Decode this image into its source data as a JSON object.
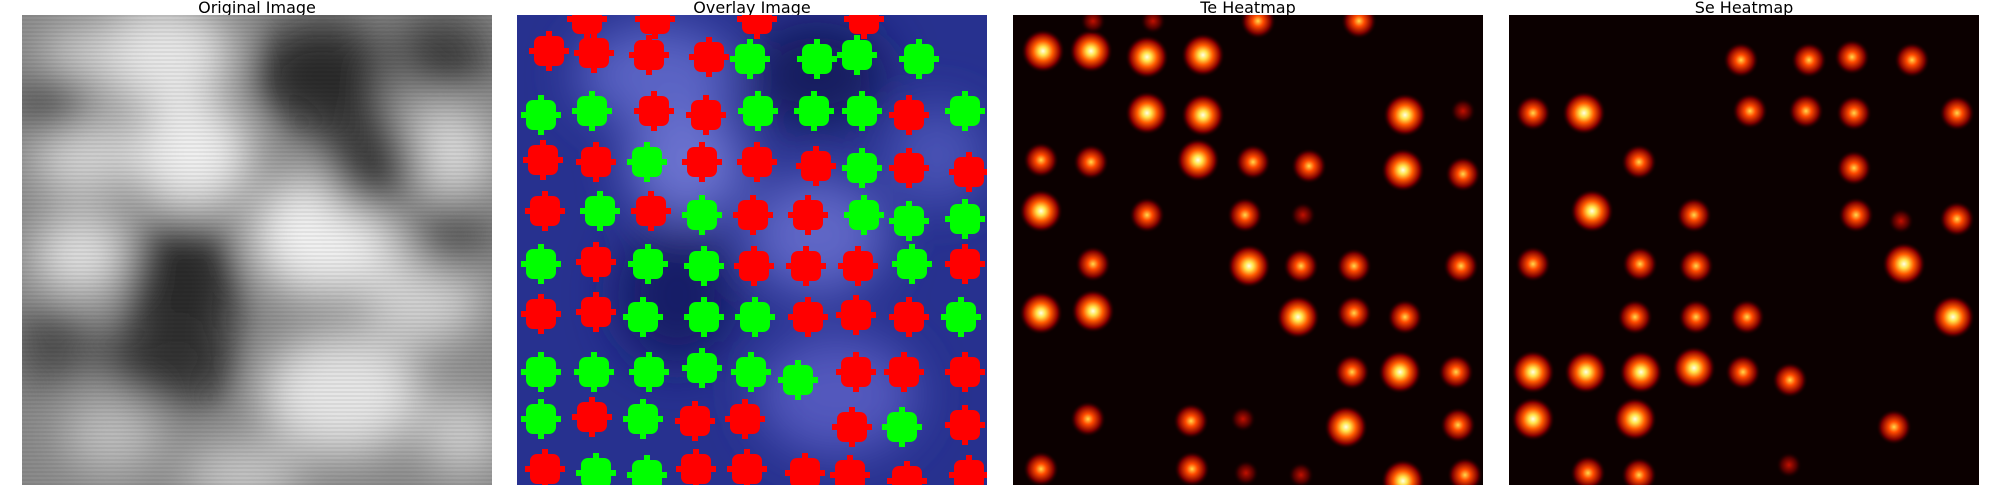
{
  "panels": [
    {
      "id": "original",
      "title": "Original Image"
    },
    {
      "id": "overlay",
      "title": "Overlay Image"
    },
    {
      "id": "te",
      "title": "Te Heatmap"
    },
    {
      "id": "se",
      "title": "Se Heatmap"
    }
  ],
  "colors": {
    "overlay_background": "#27318f",
    "te_marker": "#00ff00",
    "se_marker": "#ff0000",
    "heatmap_background": "#0b0000",
    "heatmap_peak": "#ffffcc"
  },
  "legend": []
}
